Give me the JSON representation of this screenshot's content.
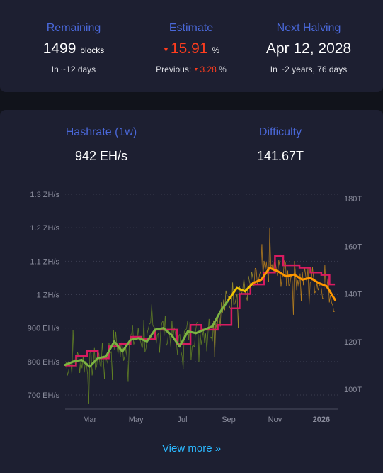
{
  "stats": {
    "remaining": {
      "title": "Remaining",
      "value": "1499",
      "unit": "blocks",
      "sub": "In ~12 days"
    },
    "estimate": {
      "title": "Estimate",
      "value": "15.91",
      "unit": "%",
      "previous_label": "Previous:",
      "previous_value": "3.28",
      "previous_unit": "%"
    },
    "next_halving": {
      "title": "Next Halving",
      "value": "Apr 12, 2028",
      "sub": "In ~2 years, 76 days"
    }
  },
  "metrics": {
    "hashrate": {
      "title": "Hashrate (1w)",
      "value": "942 EH/s"
    },
    "difficulty": {
      "title": "Difficulty",
      "value": "141.67T"
    }
  },
  "view_more": "View more »",
  "colors": {
    "accent_blue": "#4a68d9",
    "link": "#2bb8ff",
    "negative": "#ff3d1e",
    "difficulty_line": "#d81b60",
    "hashrate_avg": "#7cb342"
  },
  "chart_data": {
    "type": "line",
    "x_tick_labels": [
      "Mar",
      "May",
      "Jul",
      "Sep",
      "Nov",
      "2026"
    ],
    "y_left": {
      "labels": [
        "700 EH/s",
        "800 EH/s",
        "900 EH/s",
        "1 ZH/s",
        "1.1 ZH/s",
        "1.2 ZH/s",
        "1.3 ZH/s"
      ],
      "ticks": [
        700,
        800,
        900,
        1000,
        1100,
        1200,
        1300
      ],
      "range": [
        680,
        1300
      ],
      "unit": "EH/s"
    },
    "y_right": {
      "labels": [
        "100T",
        "120T",
        "140T",
        "160T",
        "180T"
      ],
      "ticks": [
        100,
        120,
        140,
        160,
        180
      ],
      "range": [
        95,
        182
      ],
      "unit": "T"
    },
    "x_range": [
      0,
      100
    ],
    "x_ticks": [
      9,
      26,
      43,
      60,
      77,
      94
    ],
    "series": [
      {
        "kind": "hashrate_avg_colored",
        "x": [
          0,
          3,
          6,
          9,
          12,
          15,
          18,
          21,
          24,
          27,
          30,
          33,
          36,
          39,
          42,
          45,
          48,
          51,
          54,
          57,
          60,
          63,
          66,
          69,
          72,
          75,
          78,
          81,
          84,
          87,
          90,
          93,
          96,
          99
        ],
        "values": [
          790,
          800,
          805,
          785,
          810,
          815,
          860,
          830,
          865,
          870,
          860,
          895,
          900,
          880,
          845,
          890,
          885,
          895,
          905,
          950,
          985,
          1020,
          1010,
          1035,
          1045,
          1080,
          1070,
          1055,
          1060,
          1045,
          1050,
          1035,
          1025,
          985
        ]
      },
      {
        "kind": "difficulty_step",
        "x": [
          0,
          4,
          4,
          8,
          8,
          12,
          12,
          16,
          16,
          20,
          20,
          24,
          24,
          28,
          28,
          33,
          33,
          37,
          37,
          41,
          41,
          46,
          46,
          50,
          50,
          56,
          56,
          61,
          61,
          64,
          64,
          68,
          68,
          73,
          73,
          77,
          77,
          80,
          80,
          86,
          86,
          90,
          90,
          94,
          94,
          97,
          97,
          99
        ],
        "values": [
          110,
          110,
          114,
          114,
          116,
          116,
          113,
          113,
          118,
          118,
          119,
          119,
          122,
          122,
          121,
          121,
          125,
          125,
          125,
          125,
          119,
          119,
          127,
          127,
          125,
          125,
          127,
          127,
          134,
          134,
          140,
          140,
          144,
          144,
          149,
          149,
          156,
          156,
          152,
          152,
          151,
          151,
          149,
          149,
          148,
          148,
          144,
          144
        ]
      }
    ]
  }
}
